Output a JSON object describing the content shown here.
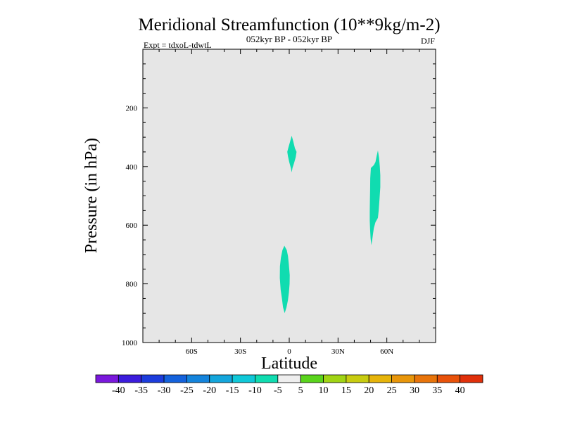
{
  "chart_data": {
    "type": "contour",
    "title": "Meridional Streamfunction (10**9kg/m-2)",
    "subtitle": "052kyr BP - 052kyr BP",
    "experiment": "Expt = tdxoL-tdwtL",
    "season": "DJF",
    "xlabel": "Latitude",
    "ylabel": "Pressure (in hPa)",
    "xlim": [
      -90,
      90
    ],
    "ylim": [
      1000,
      0
    ],
    "x_ticks": [
      {
        "value": -60,
        "label": "60S"
      },
      {
        "value": -30,
        "label": "30S"
      },
      {
        "value": 0,
        "label": "0"
      },
      {
        "value": 30,
        "label": "30N"
      },
      {
        "value": 60,
        "label": "60N"
      }
    ],
    "y_ticks": [
      {
        "value": 200,
        "label": "200"
      },
      {
        "value": 400,
        "label": "400"
      },
      {
        "value": 600,
        "label": "600"
      },
      {
        "value": 800,
        "label": "800"
      },
      {
        "value": 1000,
        "label": "1000"
      }
    ],
    "background_color": "#e6e6e6",
    "regions": [
      {
        "level": "-10 to -5",
        "color": "#10dcb0",
        "points": [
          [
            1.5,
            295
          ],
          [
            2.5,
            315
          ],
          [
            3.5,
            338
          ],
          [
            4.5,
            350
          ],
          [
            4,
            368
          ],
          [
            3,
            388
          ],
          [
            2,
            405
          ],
          [
            1.5,
            420
          ],
          [
            1,
            405
          ],
          [
            0,
            385
          ],
          [
            -0.8,
            365
          ],
          [
            -1.2,
            350
          ],
          [
            -0.5,
            335
          ],
          [
            0.5,
            315
          ]
        ]
      },
      {
        "level": "-10 to -5",
        "color": "#10dcb0",
        "points": [
          [
            54.5,
            345
          ],
          [
            55.2,
            370
          ],
          [
            55.7,
            400
          ],
          [
            56,
            430
          ],
          [
            56,
            470
          ],
          [
            55.5,
            510
          ],
          [
            55,
            550
          ],
          [
            54.5,
            575
          ],
          [
            53,
            590
          ],
          [
            52,
            610
          ],
          [
            51.5,
            630
          ],
          [
            51,
            650
          ],
          [
            50.5,
            668
          ],
          [
            50,
            645
          ],
          [
            49.7,
            615
          ],
          [
            49.5,
            585
          ],
          [
            49.5,
            555
          ],
          [
            49.6,
            520
          ],
          [
            49.7,
            480
          ],
          [
            49.8,
            440
          ],
          [
            50.2,
            405
          ],
          [
            52,
            395
          ],
          [
            53,
            385
          ],
          [
            53.7,
            365
          ]
        ]
      },
      {
        "level": "-10 to -5",
        "color": "#10dcb0",
        "points": [
          [
            -3,
            670
          ],
          [
            -1.5,
            685
          ],
          [
            -0.8,
            705
          ],
          [
            -0.3,
            730
          ],
          [
            0.3,
            770
          ],
          [
            0.2,
            800
          ],
          [
            -0.2,
            830
          ],
          [
            -0.8,
            855
          ],
          [
            -1.7,
            880
          ],
          [
            -2.8,
            900
          ],
          [
            -3.8,
            880
          ],
          [
            -4.5,
            850
          ],
          [
            -5.3,
            820
          ],
          [
            -5.8,
            780
          ],
          [
            -5.7,
            740
          ],
          [
            -5.1,
            710
          ],
          [
            -4.2,
            685
          ]
        ]
      }
    ],
    "colorbar": {
      "labels": [
        "-40",
        "-35",
        "-30",
        "-25",
        "-20",
        "-15",
        "-10",
        "-5",
        "5",
        "10",
        "15",
        "20",
        "25",
        "30",
        "35",
        "40"
      ],
      "colors": [
        "#7a18dc",
        "#3b1cdc",
        "#1c3cdc",
        "#1462dc",
        "#1484dc",
        "#14a6dc",
        "#10c8d8",
        "#10dcb0",
        "#eeeeee",
        "#5ad41c",
        "#a0d414",
        "#c8cc10",
        "#e6b40a",
        "#e8960a",
        "#e8740a",
        "#e8520a",
        "#e0300a"
      ]
    }
  }
}
